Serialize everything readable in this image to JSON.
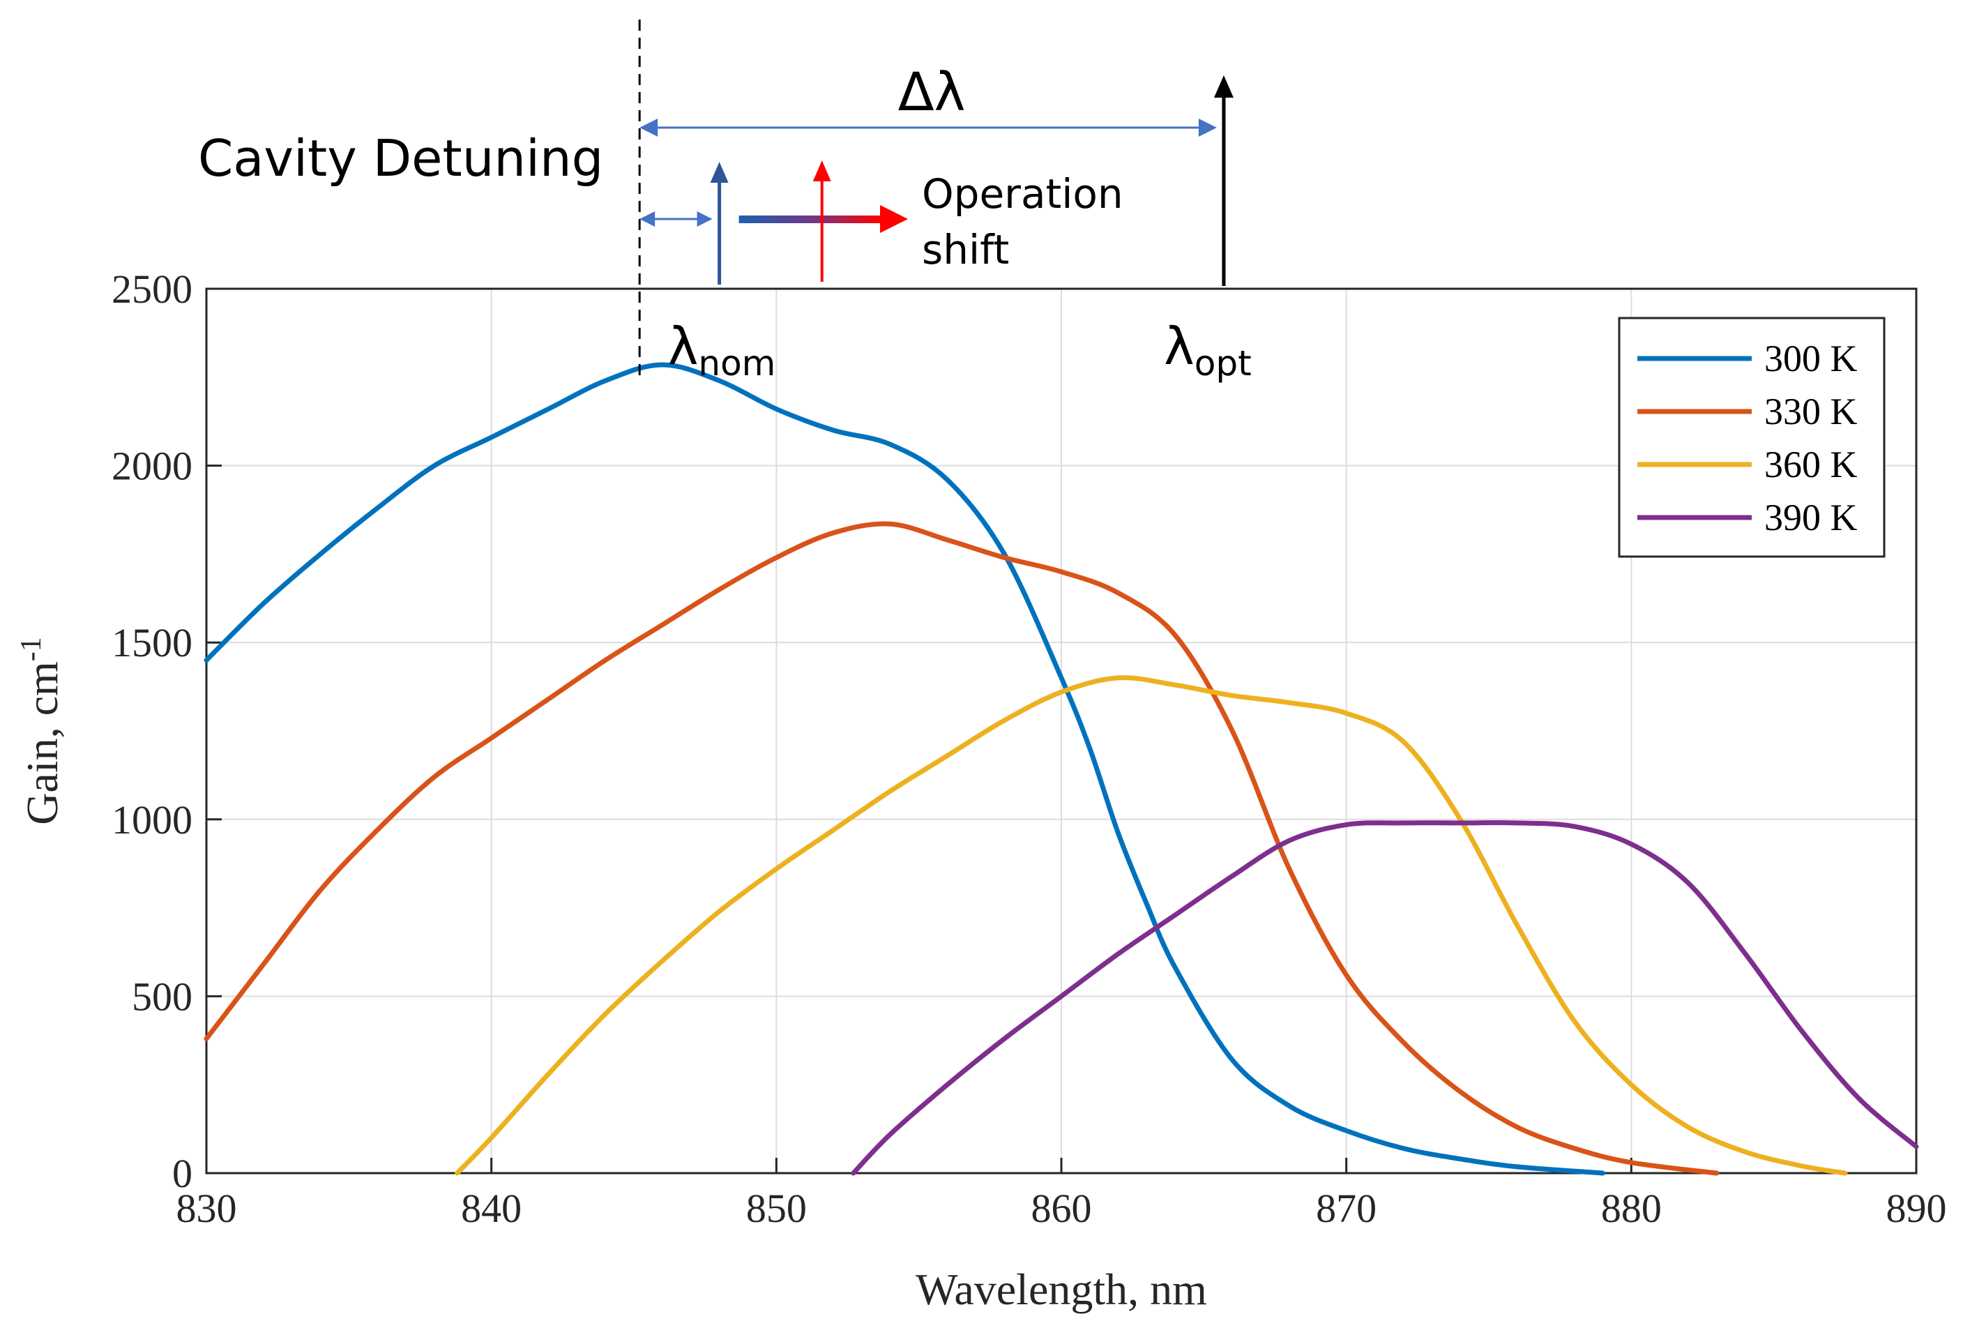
{
  "chart_data": {
    "type": "line",
    "title": "",
    "xlabel": "Wavelength, nm",
    "ylabel": "Gain, cm",
    "ylabel_superscript": "-1",
    "xlim": [
      830,
      890
    ],
    "ylim": [
      0,
      2500
    ],
    "x_ticks": [
      "830",
      "840",
      "850",
      "860",
      "870",
      "880",
      "890"
    ],
    "y_ticks": [
      "0",
      "500",
      "1000",
      "1500",
      "2000",
      "2500"
    ],
    "grid": true,
    "legend_position": "top-right",
    "series": [
      {
        "name": "300 K",
        "color": "#0072BD",
        "x": [
          830,
          832,
          834,
          836,
          838,
          840,
          842,
          844,
          846,
          848,
          850,
          852,
          854,
          856,
          858,
          860,
          861,
          862,
          863,
          864,
          866,
          868,
          870,
          872,
          874,
          876,
          879
        ],
        "y": [
          1450,
          1610,
          1750,
          1880,
          2000,
          2080,
          2160,
          2240,
          2285,
          2240,
          2160,
          2100,
          2060,
          1960,
          1750,
          1400,
          1200,
          960,
          760,
          580,
          320,
          190,
          120,
          70,
          40,
          18,
          0
        ]
      },
      {
        "name": "330 K",
        "color": "#D95319",
        "x": [
          830,
          832,
          834,
          836,
          838,
          840,
          842,
          844,
          846,
          848,
          850,
          852,
          854,
          856,
          858,
          860,
          862,
          864,
          866,
          868,
          870,
          872,
          874,
          876,
          878,
          880,
          883
        ],
        "y": [
          380,
          590,
          800,
          970,
          1120,
          1230,
          1340,
          1450,
          1550,
          1650,
          1740,
          1810,
          1835,
          1790,
          1740,
          1700,
          1640,
          1520,
          1250,
          860,
          560,
          370,
          230,
          130,
          70,
          30,
          0
        ]
      },
      {
        "name": "360 K",
        "color": "#EDB120",
        "x": [
          838.8,
          840,
          842,
          844,
          846,
          848,
          850,
          852,
          854,
          856,
          858,
          860,
          862,
          864,
          866,
          868,
          870,
          872,
          874,
          876,
          878,
          880,
          882,
          884,
          886,
          887.5
        ],
        "y": [
          0,
          100,
          280,
          450,
          600,
          740,
          860,
          970,
          1080,
          1180,
          1280,
          1360,
          1400,
          1380,
          1350,
          1330,
          1300,
          1220,
          1000,
          700,
          430,
          250,
          130,
          60,
          20,
          0
        ]
      },
      {
        "name": "390 K",
        "color": "#7E2F8E",
        "x": [
          852.7,
          854,
          856,
          858,
          860,
          862,
          864,
          866,
          868,
          870,
          872,
          874,
          876,
          878,
          880,
          882,
          884,
          886,
          888,
          890
        ],
        "y": [
          0,
          110,
          250,
          380,
          500,
          620,
          730,
          840,
          940,
          985,
          990,
          990,
          990,
          980,
          930,
          820,
          620,
          400,
          210,
          75
        ]
      }
    ]
  },
  "annotations": {
    "cavity_detuning": "Cavity Detuning",
    "delta_lambda": "Δλ",
    "operation_shift_line1": "Operation",
    "operation_shift_line2": "shift",
    "lambda_symbol": "λ",
    "lambda_nom_subscript": "nom",
    "lambda_opt_subscript": "opt",
    "detuning_reference_nm": 845.2,
    "lambda_nom_nm": 848,
    "operation_shift_nm": 851.6,
    "lambda_opt_nm": 865.7
  },
  "colors": {
    "blue_arrow": "#4472C4",
    "red_arrow": "#FF0000",
    "nominal_arrow": "#2F5597",
    "optimum_arrow": "#000000"
  }
}
